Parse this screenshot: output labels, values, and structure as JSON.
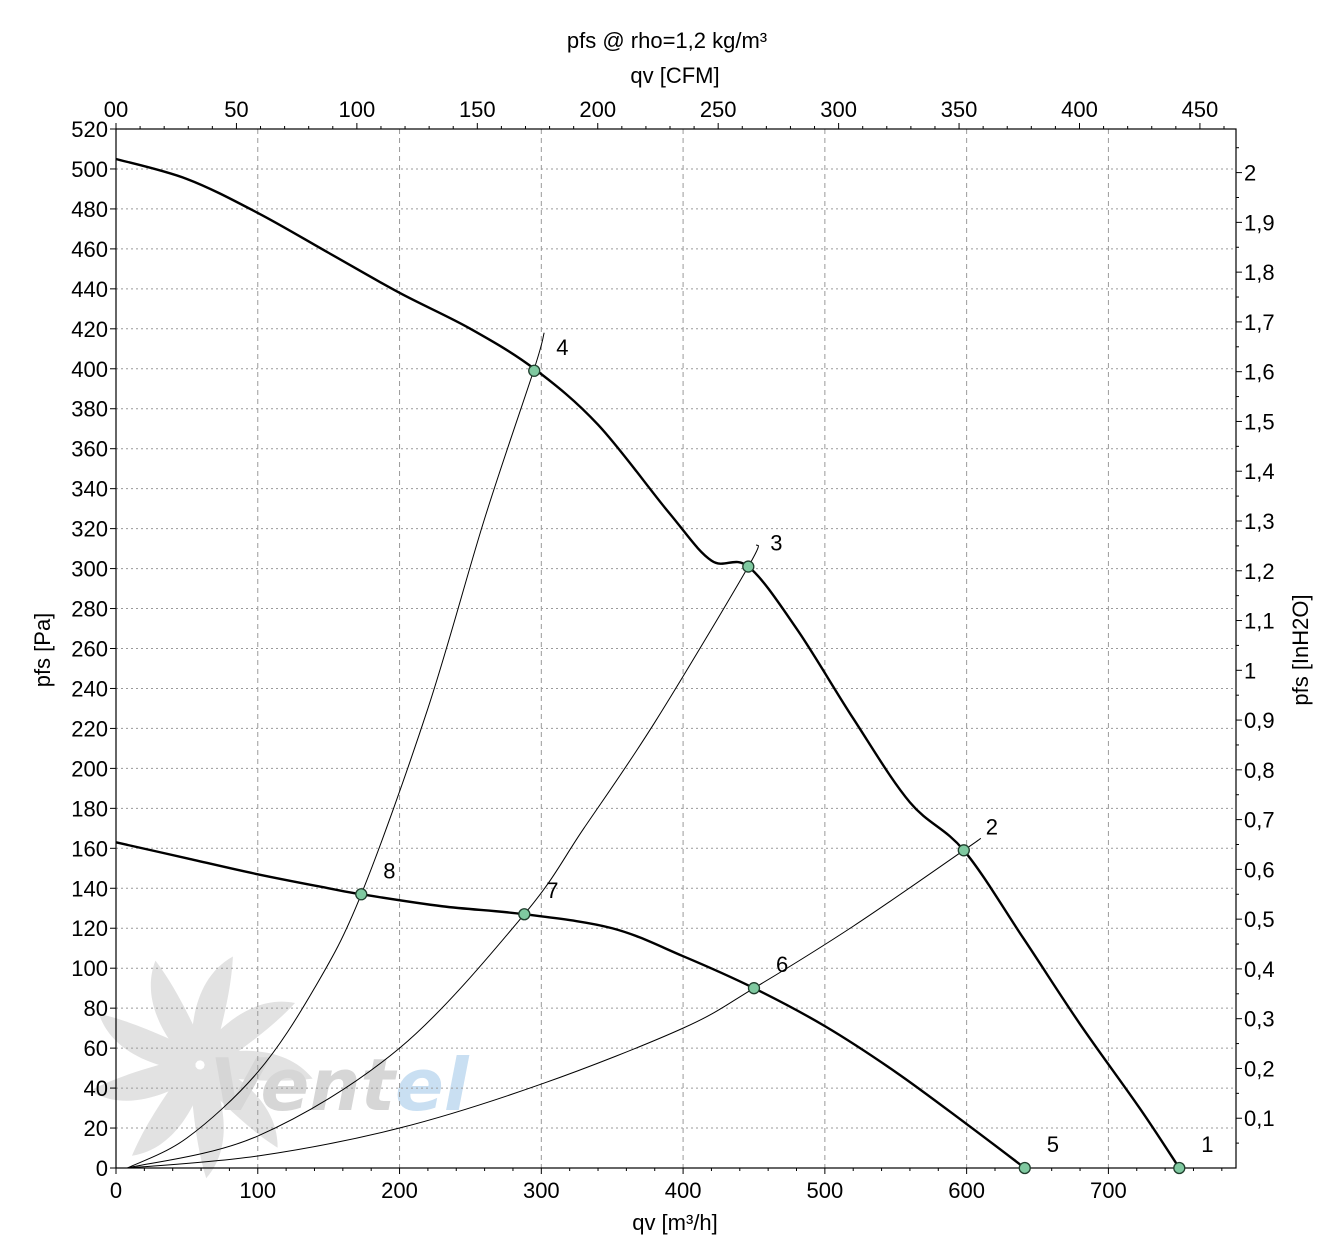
{
  "chart_data": {
    "type": "line",
    "title": "pfs @ rho=1,2 kg/m³",
    "xlabel": "qv [m³/h]",
    "ylabel": "pfs [Pa]",
    "x2label": "qv [CFM]",
    "y2label": "pfs [InH2O]",
    "xlim": [
      0,
      790
    ],
    "ylim": [
      0,
      520
    ],
    "x_ticks": [
      "0",
      "100",
      "200",
      "300",
      "400",
      "500",
      "600",
      "700"
    ],
    "y_ticks": [
      "0",
      "20",
      "40",
      "60",
      "80",
      "100",
      "120",
      "140",
      "160",
      "180",
      "200",
      "220",
      "240",
      "260",
      "280",
      "300",
      "320",
      "340",
      "360",
      "380",
      "400",
      "420",
      "440",
      "460",
      "480",
      "500",
      "520"
    ],
    "x2_ticks": [
      "00",
      "50",
      "100",
      "150",
      "200",
      "250",
      "300",
      "350",
      "400",
      "450"
    ],
    "y2_ticks": [
      "0,1",
      "0,2",
      "0,3",
      "0,4",
      "0,5",
      "0,6",
      "0,7",
      "0,8",
      "0,9",
      "1",
      "1,1",
      "1,2",
      "1,3",
      "1,4",
      "1,5",
      "1,6",
      "1,7",
      "1,8",
      "1,9",
      "2"
    ],
    "grid": true,
    "series": [
      {
        "role": "fan-curve-high",
        "x": [
          0,
          50,
          100,
          150,
          200,
          250,
          295,
          340,
          390,
          420,
          446,
          480,
          520,
          560,
          598,
          640,
          680,
          722,
          750
        ],
        "y": [
          505,
          495,
          478,
          458,
          438,
          420,
          400,
          372,
          328,
          304,
          301,
          270,
          225,
          183,
          159,
          115,
          72,
          30,
          0
        ]
      },
      {
        "role": "fan-curve-low",
        "x": [
          0,
          50,
          100,
          150,
          173,
          230,
          288,
          350,
          400,
          450,
          500,
          550,
          600,
          641
        ],
        "y": [
          163,
          155,
          147,
          140,
          137,
          131,
          127,
          120,
          106,
          90,
          71,
          48,
          22,
          0
        ]
      },
      {
        "role": "system-curve-steep",
        "x": [
          8,
          50,
          100,
          140,
          173,
          220,
          260,
          295,
          302
        ],
        "y": [
          0,
          15,
          48,
          90,
          137,
          230,
          325,
          400,
          418
        ]
      },
      {
        "role": "system-curve-medium",
        "x": [
          8,
          100,
          200,
          288,
          330,
          380,
          446,
          452
        ],
        "y": [
          0,
          16,
          60,
          127,
          170,
          223,
          301,
          312
        ]
      },
      {
        "role": "system-curve-shallow",
        "x": [
          8,
          100,
          200,
          300,
          400,
          450,
          520,
          598,
          610
        ],
        "y": [
          0,
          6,
          20,
          42,
          70,
          90,
          121,
          159,
          165
        ]
      }
    ],
    "points": [
      {
        "label": "1",
        "x": 750,
        "y": 0
      },
      {
        "label": "2",
        "x": 598,
        "y": 159
      },
      {
        "label": "3",
        "x": 446,
        "y": 301
      },
      {
        "label": "4",
        "x": 295,
        "y": 399
      },
      {
        "label": "5",
        "x": 641,
        "y": 0
      },
      {
        "label": "6",
        "x": 450,
        "y": 90
      },
      {
        "label": "7",
        "x": 288,
        "y": 127
      },
      {
        "label": "8",
        "x": 173,
        "y": 137
      }
    ],
    "point_color": "#7fc9a0"
  },
  "watermark": {
    "text": "Ventel"
  }
}
